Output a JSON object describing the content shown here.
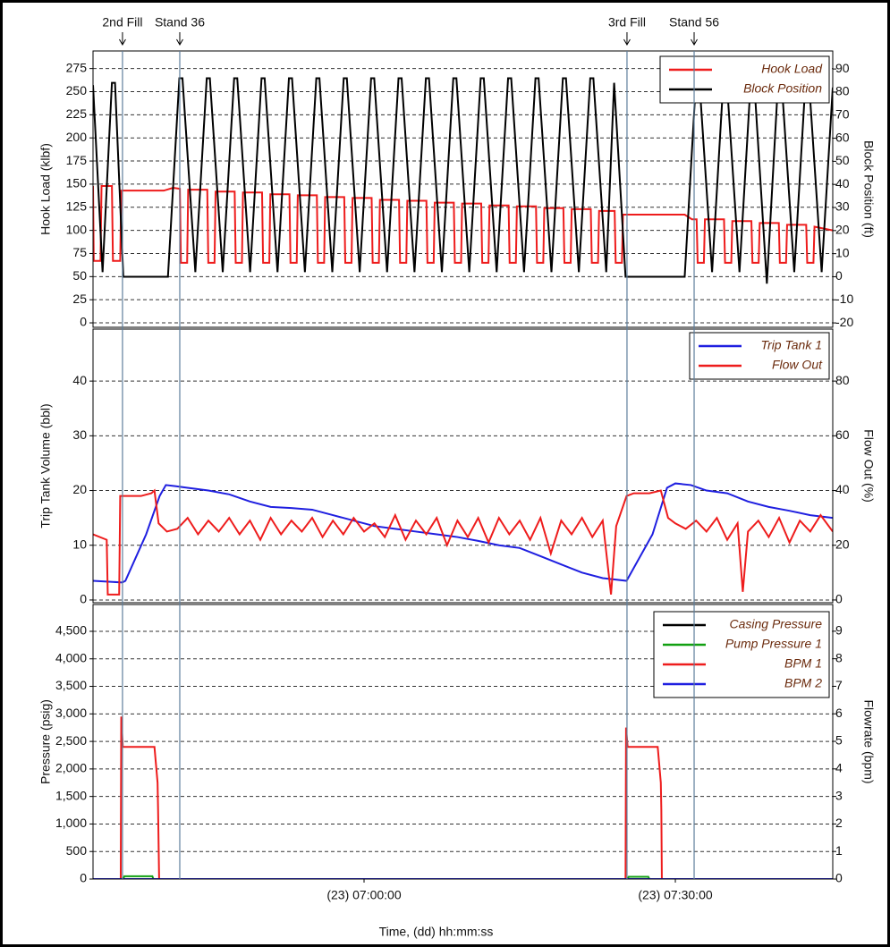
{
  "chart_data": [
    {
      "type": "line",
      "xlim": [
        393.88,
        465.17
      ],
      "ylim": [
        -4.8,
        294
      ],
      "yticks": [
        0,
        25,
        50,
        75,
        100,
        125,
        150,
        175,
        200,
        225,
        250,
        275
      ],
      "y2lim": [
        -21.9,
        97.8
      ],
      "y2ticks": [
        -20,
        -10,
        0,
        10,
        20,
        30,
        40,
        50,
        60,
        70,
        80,
        90
      ],
      "ylabel": "Hook Load (klbf)",
      "y2label": "Block Position (ft)",
      "grid": true,
      "legend": "top-right",
      "annotations": [
        {
          "x": 396.72,
          "text": "2nd Fill"
        },
        {
          "x": 402.24,
          "text": "Stand 36"
        },
        {
          "x": 445.34,
          "text": "3rd Fill"
        },
        {
          "x": 451.81,
          "text": "Stand 56"
        }
      ],
      "series": [
        {
          "name": "Hook Load",
          "color": "#ee1c1c",
          "x": [
            393.88,
            393.95,
            394.6,
            394.7,
            395.7,
            395.8,
            396.5,
            396.6,
            400.7,
            401.6,
            402.25,
            402.35,
            402.95,
            403.05,
            404.89,
            404.99,
            405.59,
            405.69,
            407.53,
            407.63,
            408.23,
            408.33,
            410.17,
            410.27,
            410.87,
            410.97,
            412.81,
            412.91,
            413.51,
            413.61,
            415.45,
            415.55,
            416.15,
            416.25,
            418.09,
            418.19,
            418.79,
            418.89,
            420.73,
            420.83,
            421.43,
            421.53,
            423.37,
            423.47,
            424.07,
            424.17,
            426.01,
            426.11,
            426.71,
            426.81,
            428.65,
            428.75,
            429.35,
            429.45,
            431.29,
            431.39,
            431.99,
            432.09,
            433.93,
            434.03,
            434.63,
            434.73,
            436.57,
            436.67,
            437.27,
            437.37,
            439.21,
            439.31,
            439.91,
            440.01,
            441.85,
            441.95,
            442.55,
            442.65,
            444.15,
            444.25,
            444.85,
            444.95,
            450.9,
            451.6,
            452.05,
            452.15,
            452.75,
            452.85,
            454.69,
            454.79,
            455.39,
            455.49,
            457.33,
            457.43,
            458.03,
            458.13,
            459.97,
            460.07,
            460.67,
            460.77,
            462.61,
            462.71,
            463.31,
            463.41,
            465.17
          ],
          "values": [
            148,
            67,
            67,
            148,
            148,
            67,
            67,
            143,
            143,
            146,
            145,
            65,
            65,
            144,
            144,
            65,
            65,
            142,
            142,
            65,
            65,
            141,
            141,
            65,
            65,
            139,
            139,
            65,
            65,
            138,
            138,
            65,
            65,
            136,
            136,
            65,
            65,
            135,
            135,
            65,
            65,
            133,
            133,
            65,
            65,
            132,
            132,
            65,
            65,
            130,
            130,
            65,
            65,
            129,
            129,
            65,
            65,
            127,
            127,
            65,
            65,
            126,
            126,
            65,
            65,
            124,
            124,
            65,
            65,
            123,
            123,
            65,
            65,
            121,
            121,
            65,
            65,
            117,
            117,
            112,
            112,
            65,
            65,
            112,
            112,
            65,
            65,
            110,
            110,
            65,
            65,
            108,
            108,
            65,
            65,
            106,
            106,
            65,
            65,
            104,
            100
          ]
        },
        {
          "name": "Block Position",
          "color": "#000000",
          "axis": "y2",
          "x": [
            393.88,
            394.8,
            395.7,
            396.0,
            396.8,
            401.1,
            402.2,
            402.5,
            403.74,
            404.84,
            405.14,
            406.38,
            407.48,
            407.78,
            409.02,
            410.12,
            410.42,
            411.66,
            412.76,
            413.06,
            414.3,
            415.4,
            415.7,
            416.94,
            418.04,
            418.34,
            419.58,
            420.68,
            420.98,
            422.22,
            423.32,
            423.62,
            424.86,
            425.96,
            426.26,
            427.5,
            428.6,
            428.9,
            430.14,
            431.24,
            431.54,
            432.78,
            433.88,
            434.18,
            435.42,
            436.52,
            436.82,
            438.06,
            439.16,
            439.46,
            440.7,
            441.8,
            442.1,
            443.34,
            444.1,
            445.2,
            450.9,
            452.0,
            452.3,
            453.54,
            454.64,
            454.94,
            456.18,
            457.28,
            457.58,
            458.82,
            459.92,
            460.22,
            461.46,
            462.56,
            462.86,
            464.1,
            465.17
          ],
          "values": [
            83,
            2,
            84,
            84,
            0,
            0,
            86,
            86,
            2,
            86,
            86,
            2,
            86,
            86,
            2,
            86,
            86,
            2,
            86,
            86,
            2,
            86,
            86,
            2,
            86,
            86,
            2,
            86,
            86,
            2,
            86,
            86,
            2,
            86,
            86,
            2,
            86,
            86,
            2,
            86,
            86,
            2,
            86,
            86,
            2,
            86,
            86,
            2,
            86,
            86,
            2,
            86,
            86,
            2,
            84,
            0,
            0,
            86,
            86,
            2,
            86,
            86,
            2,
            86,
            86,
            -3,
            86,
            86,
            2,
            86,
            86,
            2,
            82
          ]
        }
      ]
    },
    {
      "type": "line",
      "xlim": [
        393.88,
        465.17
      ],
      "ylim": [
        -0.5,
        49.5
      ],
      "yticks": [
        0,
        10,
        20,
        30,
        40
      ],
      "y2lim": [
        -1,
        99
      ],
      "y2ticks": [
        0,
        20,
        40,
        60,
        80
      ],
      "ylabel": "Trip Tank Volume (bbl)",
      "y2label": "Flow Out (%)",
      "grid": true,
      "legend": "top-right",
      "series": [
        {
          "name": "Trip Tank 1",
          "color": "#1f1fe0",
          "x": [
            393.88,
            396.7,
            397.0,
            399.0,
            400.3,
            400.9,
            401.8,
            403,
            405,
            407,
            409,
            411,
            413,
            415,
            417,
            419,
            421,
            423,
            425,
            427,
            429,
            431,
            433,
            435,
            437,
            439,
            441,
            443,
            445.3,
            447.8,
            449.2,
            450,
            451.5,
            453,
            455,
            457,
            459,
            461,
            463,
            465.17
          ],
          "values": [
            3.5,
            3.2,
            3.5,
            12,
            19,
            21,
            20.8,
            20.5,
            20,
            19.3,
            18,
            17,
            16.8,
            16.5,
            15.5,
            14.5,
            13.5,
            13,
            12.5,
            12,
            11.5,
            10.8,
            10,
            9.5,
            8,
            6.5,
            5,
            4,
            3.5,
            12,
            20.5,
            21.3,
            21,
            20,
            19.5,
            18,
            17,
            16.3,
            15.5,
            15
          ]
        },
        {
          "name": "Flow Out",
          "color": "#ee1c1c",
          "axis": "y2",
          "x": [
            393.88,
            395.2,
            395.3,
            396.4,
            396.5,
            398.5,
            399.5,
            399.8,
            400.2,
            401,
            402,
            403,
            404,
            405,
            406,
            407,
            408,
            409,
            410,
            411,
            412,
            413,
            414,
            415,
            416,
            417,
            418,
            419,
            420,
            421,
            422,
            423,
            424,
            425,
            426,
            427,
            428,
            429,
            430,
            431,
            432,
            433,
            434,
            435,
            436,
            437,
            438,
            439,
            440,
            441,
            442,
            443,
            443.8,
            444.3,
            445.3,
            446,
            447.5,
            448.6,
            449.3,
            450,
            451,
            452,
            453,
            454,
            455,
            456,
            456.5,
            457,
            458,
            459,
            460,
            461,
            462,
            463,
            464,
            465.17
          ],
          "values": [
            24,
            22,
            2,
            2,
            38,
            38,
            39,
            40,
            28,
            25,
            26,
            30,
            24,
            29,
            25,
            30,
            24,
            29,
            22,
            30,
            24,
            29,
            25,
            30,
            23,
            29,
            24,
            30,
            25,
            28,
            23,
            31,
            22,
            29,
            24,
            30,
            20,
            29,
            23,
            30,
            21,
            30,
            24,
            29,
            22,
            30,
            17,
            29,
            24,
            30,
            23,
            29,
            2,
            27,
            38,
            39,
            39,
            40,
            30,
            28,
            26,
            29,
            25,
            30,
            22,
            28,
            3,
            25,
            29,
            23,
            30,
            21,
            29,
            25,
            31,
            25
          ]
        }
      ]
    },
    {
      "type": "line",
      "xlim": [
        393.88,
        465.17
      ],
      "ylim": [
        0,
        4987
      ],
      "yticks": [
        0,
        500,
        {
          "value": 1000,
          "label": "1,000"
        },
        {
          "value": 1500,
          "label": "1,500"
        },
        {
          "value": 2000,
          "label": "2,000"
        },
        {
          "value": 2500,
          "label": "2,500"
        },
        {
          "value": 3000,
          "label": "3,000"
        },
        {
          "value": 3500,
          "label": "3,500"
        },
        {
          "value": 4000,
          "label": "4,000"
        },
        {
          "value": 4500,
          "label": "4,500"
        }
      ],
      "y2lim": [
        0,
        9.97
      ],
      "y2ticks": [
        0,
        1,
        2,
        3,
        4,
        5,
        6,
        7,
        8,
        9
      ],
      "xticks": [
        {
          "value": 420,
          "label": "(23) 07:00:00"
        },
        {
          "value": 450,
          "label": "(23) 07:30:00"
        }
      ],
      "ylabel": "Pressure (psig)",
      "y2label": "Flowrate (bpm)",
      "xlabel": "Time, (dd) hh:mm:ss",
      "grid": true,
      "legend": "top-right",
      "series": [
        {
          "name": "Casing Pressure",
          "color": "#000000",
          "x": [
            393.88,
            465.17
          ],
          "values": [
            0,
            0
          ]
        },
        {
          "name": "Pump Pressure 1",
          "color": "#12a012",
          "x": [
            393.88,
            396.8,
            396.9,
            399.6,
            399.7,
            445.4,
            445.5,
            447.4,
            447.5,
            465.17
          ],
          "values": [
            0,
            0,
            50,
            50,
            0,
            0,
            40,
            40,
            0,
            0
          ]
        },
        {
          "name": "BPM 1",
          "color": "#ee1c1c",
          "axis": "y2",
          "x": [
            393.88,
            396.55,
            396.6,
            396.75,
            399.8,
            400.1,
            400.15,
            400.25,
            445.2,
            445.25,
            445.4,
            448.3,
            448.6,
            448.65,
            448.7,
            465.17
          ],
          "values": [
            0,
            0,
            5.9,
            4.8,
            4.8,
            3.5,
            2.5,
            0,
            0,
            5.5,
            4.8,
            4.8,
            3.5,
            2.5,
            0,
            0
          ]
        },
        {
          "name": "BPM 2",
          "color": "#1f1fe0",
          "axis": "y2",
          "x": [
            393.88,
            465.17
          ],
          "values": [
            0,
            0
          ]
        }
      ]
    }
  ]
}
